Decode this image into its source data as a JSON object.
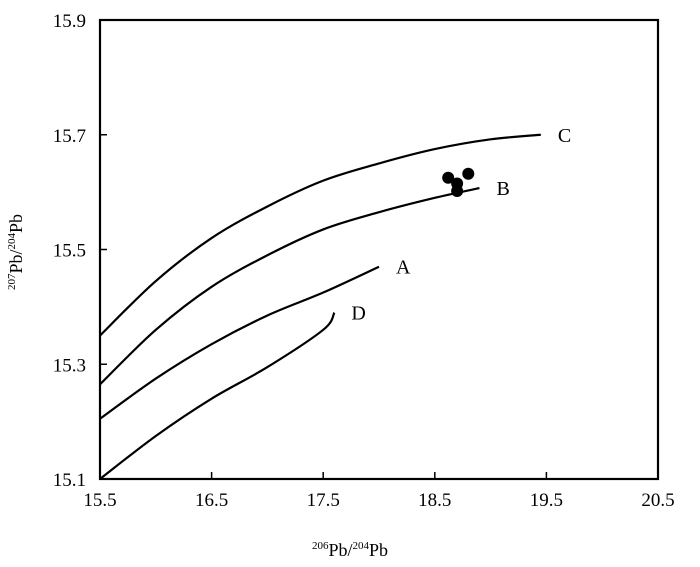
{
  "chart_data": {
    "type": "line",
    "xlabel": {
      "sup": "206",
      "main": "Pb/",
      "sup2": "204",
      "main2": "Pb"
    },
    "ylabel": {
      "sup": "207",
      "main": "Pb/",
      "sup2": "204",
      "main2": "Pb"
    },
    "xlim": [
      15.5,
      20.5
    ],
    "ylim": [
      15.1,
      15.9
    ],
    "xticks": [
      15.5,
      16.5,
      17.5,
      18.5,
      19.5,
      20.5
    ],
    "xtick_labels": [
      "15.5",
      "16.5",
      "17.5",
      "18.5",
      "19.5",
      "20.5"
    ],
    "yticks": [
      15.1,
      15.3,
      15.5,
      15.7,
      15.9
    ],
    "ytick_labels": [
      "15.1",
      "15.3",
      "15.5",
      "15.7",
      "15.9"
    ],
    "grid": false,
    "legend": "none",
    "curves": [
      {
        "name": "C",
        "points": [
          [
            15.5,
            15.35
          ],
          [
            16.0,
            15.445
          ],
          [
            16.5,
            15.52
          ],
          [
            17.0,
            15.575
          ],
          [
            17.5,
            15.62
          ],
          [
            18.0,
            15.65
          ],
          [
            18.5,
            15.675
          ],
          [
            19.0,
            15.692
          ],
          [
            19.45,
            15.7
          ]
        ]
      },
      {
        "name": "B",
        "points": [
          [
            15.5,
            15.265
          ],
          [
            16.0,
            15.36
          ],
          [
            16.5,
            15.435
          ],
          [
            17.0,
            15.49
          ],
          [
            17.5,
            15.535
          ],
          [
            18.0,
            15.565
          ],
          [
            18.5,
            15.59
          ],
          [
            18.9,
            15.607
          ]
        ]
      },
      {
        "name": "A",
        "points": [
          [
            15.5,
            15.205
          ],
          [
            16.0,
            15.275
          ],
          [
            16.5,
            15.335
          ],
          [
            17.0,
            15.385
          ],
          [
            17.5,
            15.425
          ],
          [
            18.0,
            15.47
          ]
        ]
      },
      {
        "name": "D",
        "points": [
          [
            15.5,
            15.1
          ],
          [
            16.0,
            15.175
          ],
          [
            16.5,
            15.24
          ],
          [
            17.0,
            15.295
          ],
          [
            17.5,
            15.36
          ],
          [
            17.6,
            15.39
          ]
        ]
      }
    ],
    "scatter": [
      {
        "x": 18.62,
        "y": 15.625
      },
      {
        "x": 18.7,
        "y": 15.615
      },
      {
        "x": 18.8,
        "y": 15.632
      },
      {
        "x": 18.7,
        "y": 15.602
      }
    ]
  }
}
